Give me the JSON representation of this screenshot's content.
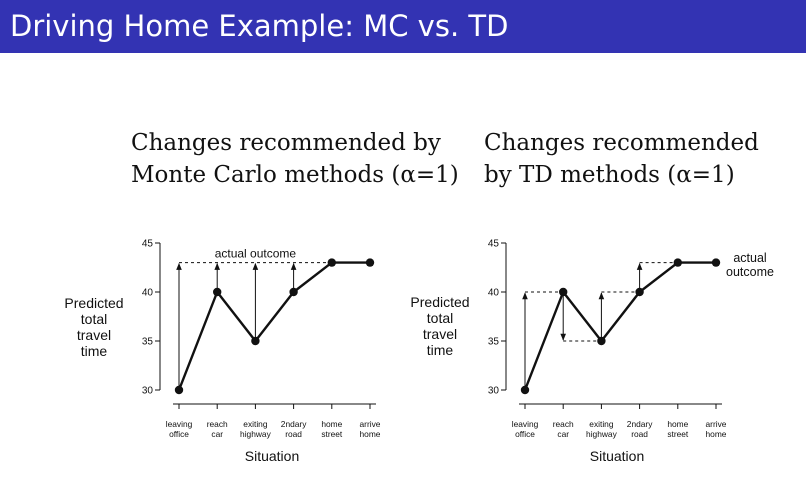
{
  "slide": {
    "title": "Driving Home Example: MC vs. TD"
  },
  "chart_data": [
    {
      "type": "line",
      "title_lines": [
        "Changes recommended by",
        "Monte Carlo methods (α=1)"
      ],
      "ylabel_lines": [
        "Predicted",
        "total",
        "travel",
        "time"
      ],
      "xlabel": "Situation",
      "categories": [
        [
          "leaving",
          "office"
        ],
        [
          "reach",
          "car"
        ],
        [
          "exiting",
          "highway"
        ],
        [
          "2ndary",
          "road"
        ],
        [
          "home",
          "street"
        ],
        [
          "arrive",
          "home"
        ]
      ],
      "y_ticks": [
        30,
        35,
        40,
        45
      ],
      "ylim": [
        30,
        45
      ],
      "series": [
        {
          "values": [
            30,
            40,
            35,
            40,
            43,
            43
          ]
        }
      ],
      "actual_outcome": 43,
      "annotation": {
        "text": "actual outcome",
        "placement": "above the dashed actual-outcome line"
      },
      "arrows": [
        {
          "at": 0,
          "from": 30,
          "to": 43
        },
        {
          "at": 1,
          "from": 40,
          "to": 43
        },
        {
          "at": 2,
          "from": 35,
          "to": 43
        },
        {
          "at": 3,
          "from": 40,
          "to": 43
        }
      ]
    },
    {
      "type": "line",
      "title_lines": [
        "Changes recommended",
        "by TD methods (α=1)"
      ],
      "ylabel_lines": [
        "Predicted",
        "total",
        "travel",
        "time"
      ],
      "xlabel": "Situation",
      "categories": [
        [
          "leaving",
          "office"
        ],
        [
          "reach",
          "car"
        ],
        [
          "exiting",
          "highway"
        ],
        [
          "2ndary",
          "road"
        ],
        [
          "home",
          "street"
        ],
        [
          "arrive",
          "home"
        ]
      ],
      "y_ticks": [
        30,
        35,
        40,
        45
      ],
      "ylim": [
        30,
        45
      ],
      "series": [
        {
          "values": [
            30,
            40,
            35,
            40,
            43,
            43
          ]
        }
      ],
      "annotation": {
        "text_lines": [
          "actual",
          "outcome"
        ],
        "placement": "right of final point"
      },
      "arrows": [
        {
          "at": 0,
          "from": 30,
          "to": 40
        },
        {
          "at": 1,
          "from": 40,
          "to": 35
        },
        {
          "at": 2,
          "from": 35,
          "to": 40
        },
        {
          "at": 3,
          "from": 40,
          "to": 43
        }
      ]
    }
  ]
}
